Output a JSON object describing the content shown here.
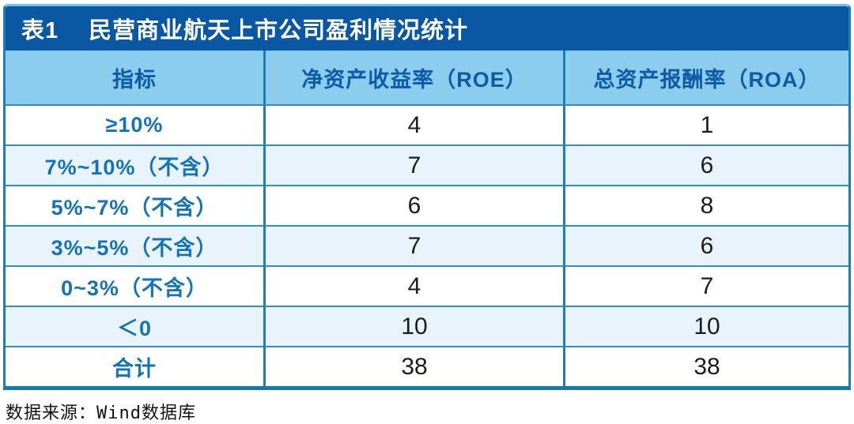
{
  "title_bar": {
    "tag": "表1",
    "title": "民营商业航天上市公司盈利情况统计"
  },
  "chart_data": {
    "type": "table",
    "title": "表1 民营商业航天上市公司盈利情况统计",
    "columns": [
      "指标",
      "净资产收益率（ROE）",
      "总资产报酬率（ROA）"
    ],
    "rows": [
      [
        "≥10%",
        4,
        1
      ],
      [
        "7%~10%（不含）",
        7,
        6
      ],
      [
        "5%~7%（不含）",
        6,
        8
      ],
      [
        "3%~5%（不含）",
        7,
        6
      ],
      [
        "0~3%（不含）",
        4,
        7
      ],
      [
        "＜0",
        10,
        10
      ],
      [
        "合计",
        38,
        38
      ]
    ],
    "row_group_note": "rows are ROE/ROA value ranges; 合计 is the total (38 companies)",
    "source": "数据来源：Wind数据库"
  },
  "source_note": "数据来源：Wind数据库",
  "colors": {
    "title_bar_bg": "#0a57a4",
    "title_text": "#ffffff",
    "header_bg": "#8ccdee",
    "header_text": "#0b5ba8",
    "label_text": "#1273bb",
    "value_text": "#1c1c1c",
    "row_alt_bg": "#e9f3fb",
    "grid_line": "#2e8fc0",
    "column_line": "#1f7db5",
    "bottom_border": "#1478b2",
    "outer_top_line": "#6fc3ee",
    "source_text": "#111111"
  }
}
